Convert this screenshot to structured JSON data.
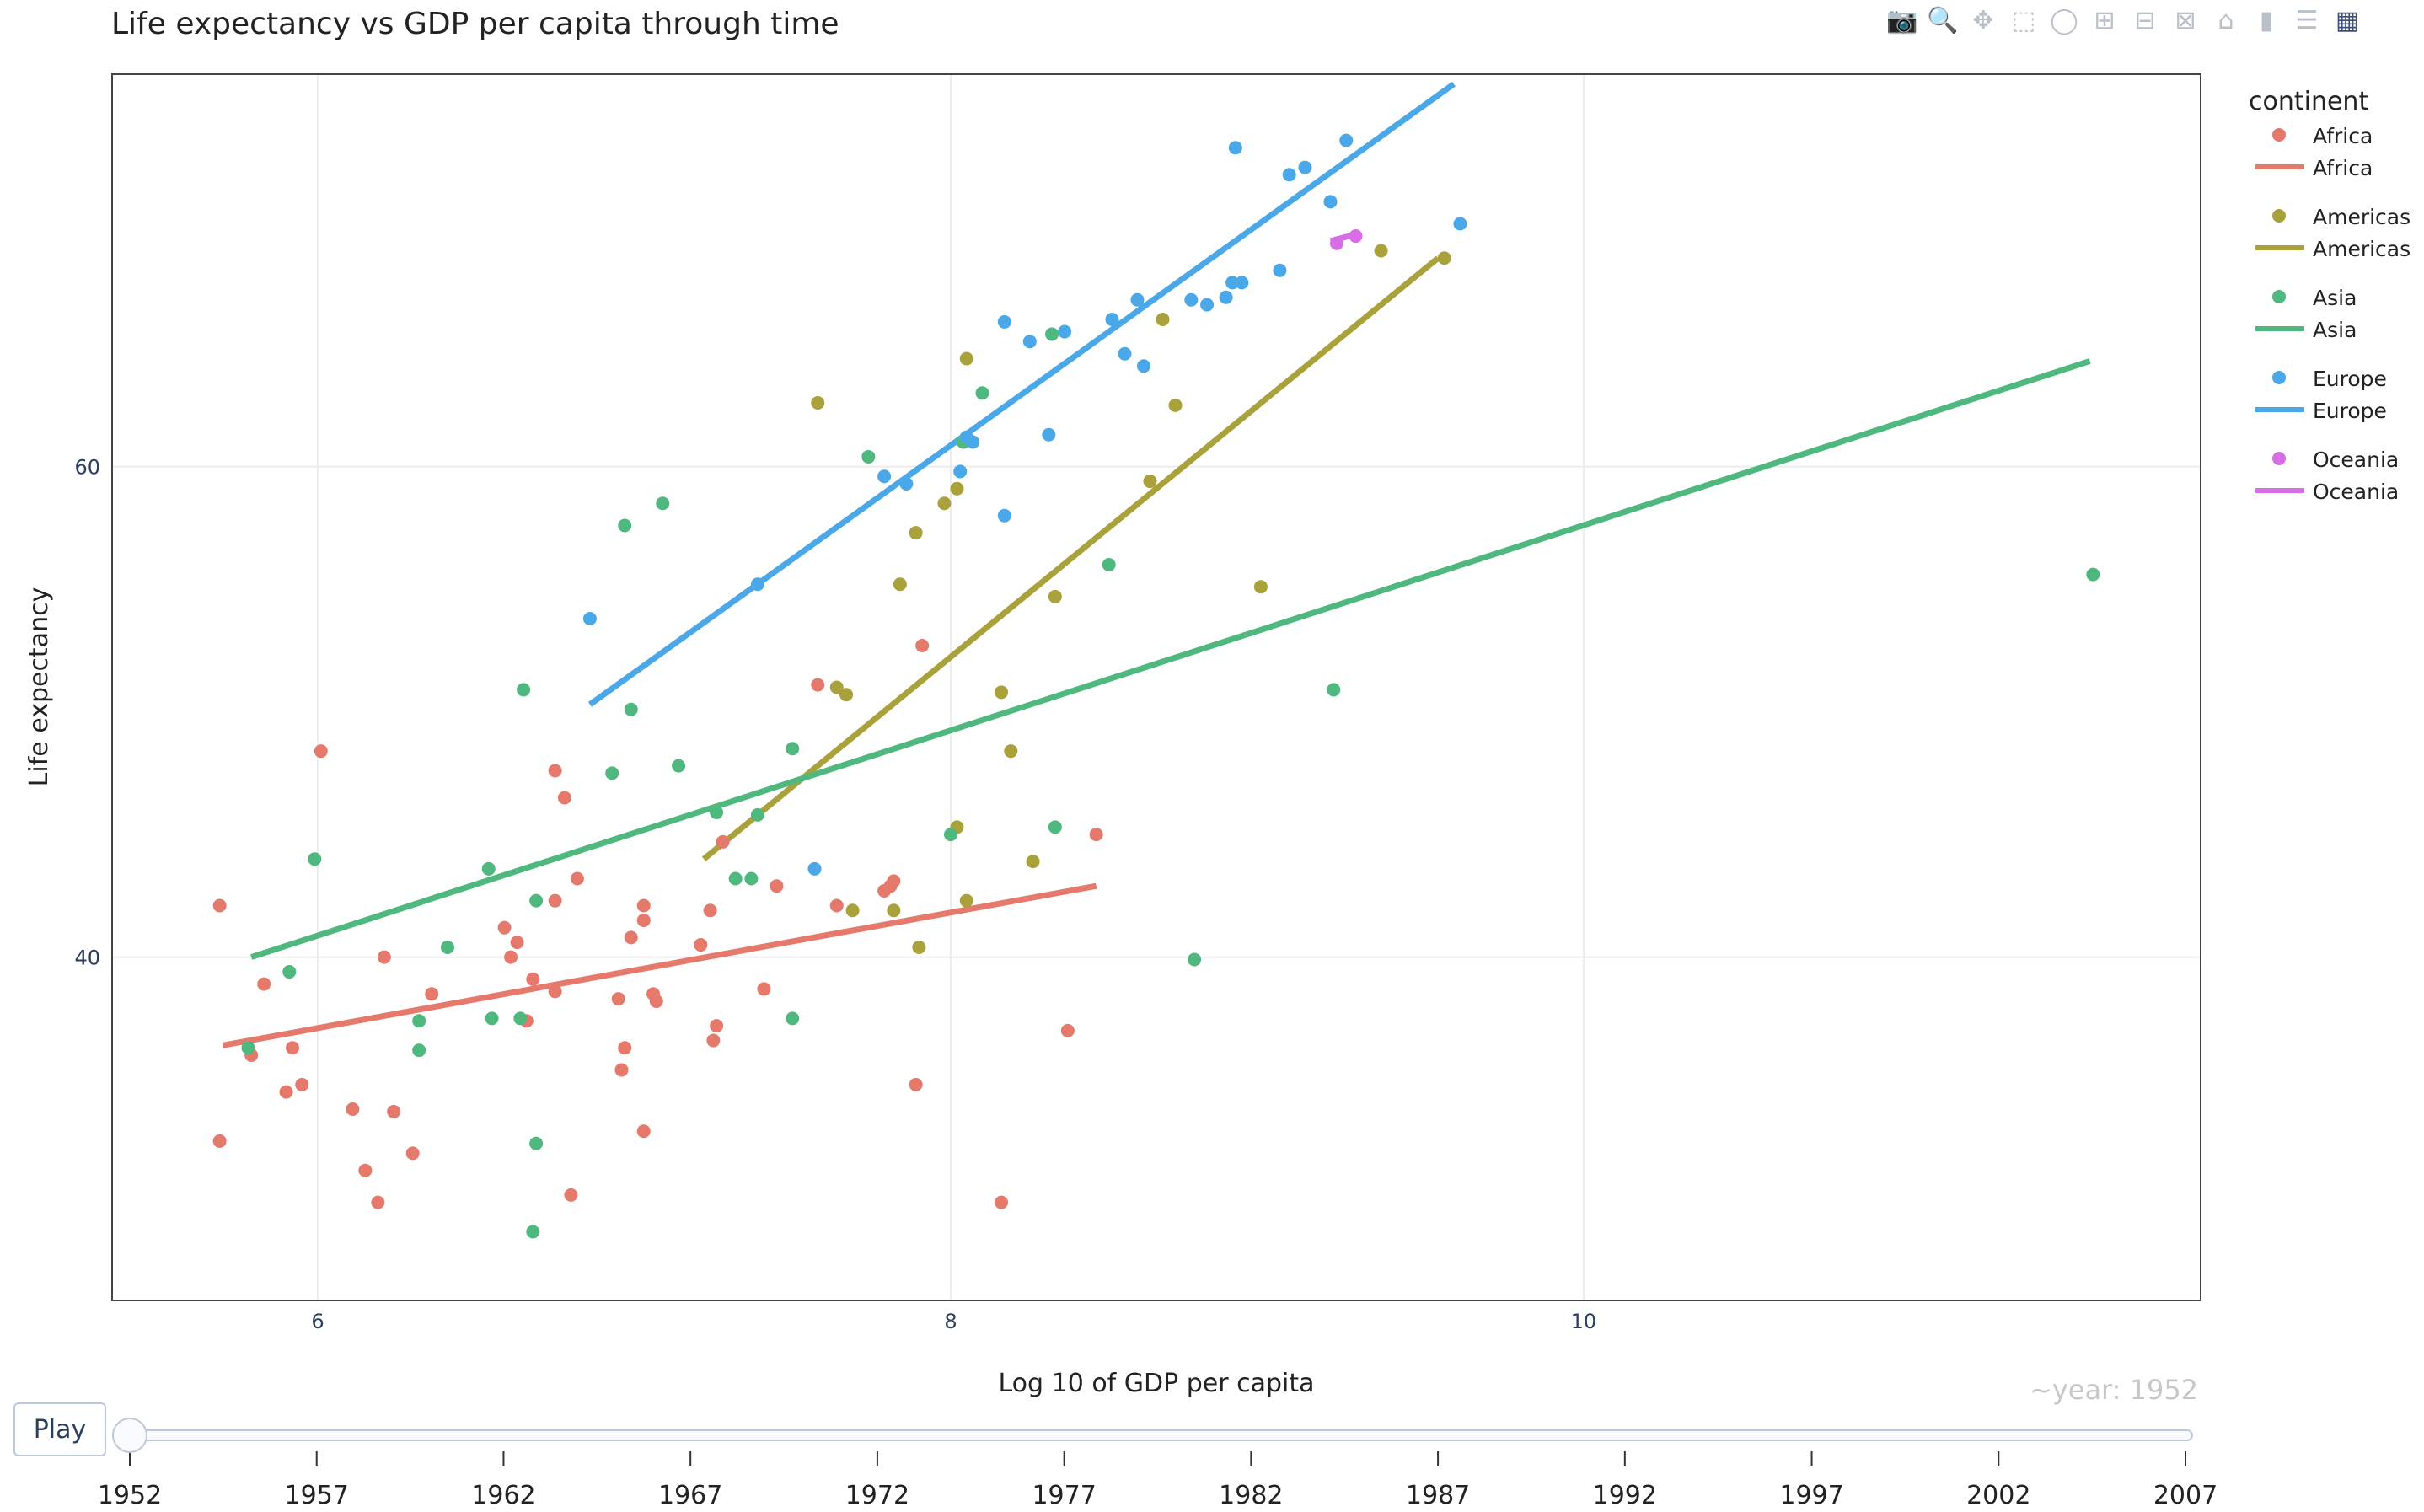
{
  "modebar": {
    "icons": [
      "camera-icon",
      "zoom-icon",
      "pan-icon",
      "box-select-icon",
      "lasso-icon",
      "zoom-in-icon",
      "zoom-out-icon",
      "autoscale-icon",
      "home-icon",
      "spike-lines-icon",
      "compare-data-icon",
      "plotly-logo-icon"
    ]
  },
  "player": {
    "play_label": "Play",
    "current_prefix": "~year: ",
    "current_year": "1952",
    "years": [
      "1952",
      "1957",
      "1962",
      "1967",
      "1972",
      "1977",
      "1982",
      "1987",
      "1992",
      "1997",
      "2002",
      "2007"
    ],
    "selected_index": 0
  },
  "colors": {
    "Africa": "#e5796c",
    "Americas": "#a9a13a",
    "Asia": "#4fb87e",
    "Europe": "#4aa8e8",
    "Oceania": "#d86ee6",
    "grid": "#ececec",
    "axis_text": "#2a3f5f"
  },
  "chart_data": {
    "type": "scatter",
    "title": "Life expectancy vs GDP per capita through time",
    "xlabel": "Log 10 of GDP per capita",
    "ylabel": "Life expectancy",
    "xlim": [
      5.35,
      11.95
    ],
    "ylim": [
      26.0,
      76.0
    ],
    "xticks": [
      6,
      8,
      10
    ],
    "yticks": [
      40,
      60
    ],
    "grid": true,
    "legend_title": "continent",
    "legend_position": "right",
    "legend": [
      {
        "name": "Africa",
        "marker_label": "Africa",
        "line_label": "Africa"
      },
      {
        "name": "Americas",
        "marker_label": "Americas",
        "line_label": "Americas"
      },
      {
        "name": "Asia",
        "marker_label": "Asia",
        "line_label": "Asia"
      },
      {
        "name": "Europe",
        "marker_label": "Europe",
        "line_label": "Europe"
      },
      {
        "name": "Oceania",
        "marker_label": "Oceania",
        "line_label": "Oceania"
      }
    ],
    "trendlines": [
      {
        "name": "Africa",
        "x": [
          5.7,
          8.46
        ],
        "y": [
          36.4,
          42.9
        ]
      },
      {
        "name": "Americas",
        "x": [
          7.22,
          9.54
        ],
        "y": [
          44.0,
          68.5
        ]
      },
      {
        "name": "Asia",
        "x": [
          5.79,
          11.6
        ],
        "y": [
          40.0,
          64.3
        ]
      },
      {
        "name": "Europe",
        "x": [
          6.86,
          9.59
        ],
        "y": [
          50.3,
          75.6
        ]
      },
      {
        "name": "Oceania",
        "x": [
          9.2,
          9.29
        ],
        "y": [
          69.2,
          69.5
        ]
      }
    ],
    "series": [
      {
        "name": "Africa",
        "points": [
          [
            5.69,
            42.1
          ],
          [
            5.69,
            32.5
          ],
          [
            5.79,
            36.0
          ],
          [
            5.83,
            38.9
          ],
          [
            5.9,
            34.5
          ],
          [
            5.92,
            36.3
          ],
          [
            5.95,
            34.8
          ],
          [
            6.01,
            48.4
          ],
          [
            6.11,
            33.8
          ],
          [
            6.15,
            31.3
          ],
          [
            6.19,
            30.0
          ],
          [
            6.21,
            40.0
          ],
          [
            6.24,
            33.7
          ],
          [
            6.3,
            32.0
          ],
          [
            6.36,
            38.5
          ],
          [
            6.59,
            41.2
          ],
          [
            6.61,
            40.0
          ],
          [
            6.63,
            40.6
          ],
          [
            6.66,
            37.4
          ],
          [
            6.68,
            39.1
          ],
          [
            6.75,
            42.3
          ],
          [
            6.75,
            38.6
          ],
          [
            6.75,
            47.6
          ],
          [
            6.78,
            46.5
          ],
          [
            6.82,
            43.2
          ],
          [
            6.8,
            30.3
          ],
          [
            6.95,
            38.3
          ],
          [
            6.96,
            35.4
          ],
          [
            6.97,
            36.3
          ],
          [
            6.99,
            40.8
          ],
          [
            7.03,
            42.1
          ],
          [
            7.03,
            41.5
          ],
          [
            7.06,
            38.5
          ],
          [
            7.07,
            38.2
          ],
          [
            7.03,
            32.9
          ],
          [
            7.21,
            40.5
          ],
          [
            7.24,
            41.9
          ],
          [
            7.25,
            36.6
          ],
          [
            7.26,
            37.2
          ],
          [
            7.28,
            44.7
          ],
          [
            7.41,
            38.7
          ],
          [
            7.45,
            42.9
          ],
          [
            7.58,
            51.1
          ],
          [
            7.64,
            42.1
          ],
          [
            7.79,
            42.7
          ],
          [
            7.82,
            43.1
          ],
          [
            7.81,
            42.9
          ],
          [
            7.89,
            34.8
          ],
          [
            7.91,
            52.7
          ],
          [
            8.16,
            30.0
          ],
          [
            8.37,
            37.0
          ],
          [
            8.46,
            45.0
          ]
        ]
      },
      {
        "name": "Americas",
        "points": [
          [
            7.58,
            62.6
          ],
          [
            7.64,
            51.0
          ],
          [
            7.67,
            50.7
          ],
          [
            7.69,
            41.9
          ],
          [
            7.82,
            41.9
          ],
          [
            7.84,
            55.2
          ],
          [
            7.89,
            57.3
          ],
          [
            7.9,
            40.4
          ],
          [
            7.98,
            58.5
          ],
          [
            8.02,
            59.1
          ],
          [
            8.02,
            45.3
          ],
          [
            8.05,
            64.4
          ],
          [
            8.05,
            42.3
          ],
          [
            8.16,
            50.8
          ],
          [
            8.19,
            48.4
          ],
          [
            8.26,
            43.9
          ],
          [
            8.33,
            54.7
          ],
          [
            8.63,
            59.4
          ],
          [
            8.71,
            62.5
          ],
          [
            8.67,
            66.0
          ],
          [
            8.98,
            55.1
          ],
          [
            9.36,
            68.8
          ],
          [
            9.56,
            68.5
          ]
        ]
      },
      {
        "name": "Asia",
        "points": [
          [
            5.78,
            36.3
          ],
          [
            5.91,
            39.4
          ],
          [
            5.99,
            44.0
          ],
          [
            6.32,
            37.4
          ],
          [
            6.32,
            36.2
          ],
          [
            6.41,
            40.4
          ],
          [
            6.54,
            43.6
          ],
          [
            6.55,
            37.5
          ],
          [
            6.64,
            37.5
          ],
          [
            6.65,
            50.9
          ],
          [
            6.69,
            42.3
          ],
          [
            6.69,
            32.4
          ],
          [
            6.68,
            28.8
          ],
          [
            6.93,
            47.5
          ],
          [
            6.97,
            57.6
          ],
          [
            6.99,
            50.1
          ],
          [
            7.09,
            58.5
          ],
          [
            7.14,
            47.8
          ],
          [
            7.26,
            45.9
          ],
          [
            7.32,
            43.2
          ],
          [
            7.37,
            43.2
          ],
          [
            7.39,
            45.8
          ],
          [
            7.5,
            48.5
          ],
          [
            7.5,
            37.5
          ],
          [
            7.74,
            60.4
          ],
          [
            8.0,
            45.0
          ],
          [
            8.04,
            61.0
          ],
          [
            8.1,
            63.0
          ],
          [
            8.32,
            65.4
          ],
          [
            8.33,
            45.3
          ],
          [
            8.5,
            56.0
          ],
          [
            8.77,
            39.9
          ],
          [
            9.21,
            50.9
          ],
          [
            11.61,
            55.6
          ]
        ]
      },
      {
        "name": "Europe",
        "points": [
          [
            6.86,
            53.8
          ],
          [
            7.39,
            55.2
          ],
          [
            7.57,
            43.6
          ],
          [
            7.79,
            59.6
          ],
          [
            7.86,
            59.3
          ],
          [
            8.03,
            59.8
          ],
          [
            8.05,
            61.2
          ],
          [
            8.07,
            61.0
          ],
          [
            8.17,
            58.0
          ],
          [
            8.17,
            65.9
          ],
          [
            8.25,
            65.1
          ],
          [
            8.31,
            61.3
          ],
          [
            8.36,
            65.5
          ],
          [
            8.51,
            66.0
          ],
          [
            8.55,
            64.6
          ],
          [
            8.59,
            66.8
          ],
          [
            8.61,
            64.1
          ],
          [
            8.76,
            66.8
          ],
          [
            8.81,
            66.6
          ],
          [
            8.87,
            66.9
          ],
          [
            8.89,
            67.5
          ],
          [
            8.92,
            67.5
          ],
          [
            8.9,
            73.0
          ],
          [
            9.04,
            68.0
          ],
          [
            9.07,
            71.9
          ],
          [
            9.12,
            72.2
          ],
          [
            9.2,
            70.8
          ],
          [
            9.25,
            73.3
          ],
          [
            9.61,
            69.9
          ]
        ]
      },
      {
        "name": "Oceania",
        "points": [
          [
            9.22,
            69.1
          ],
          [
            9.28,
            69.4
          ]
        ]
      }
    ]
  }
}
